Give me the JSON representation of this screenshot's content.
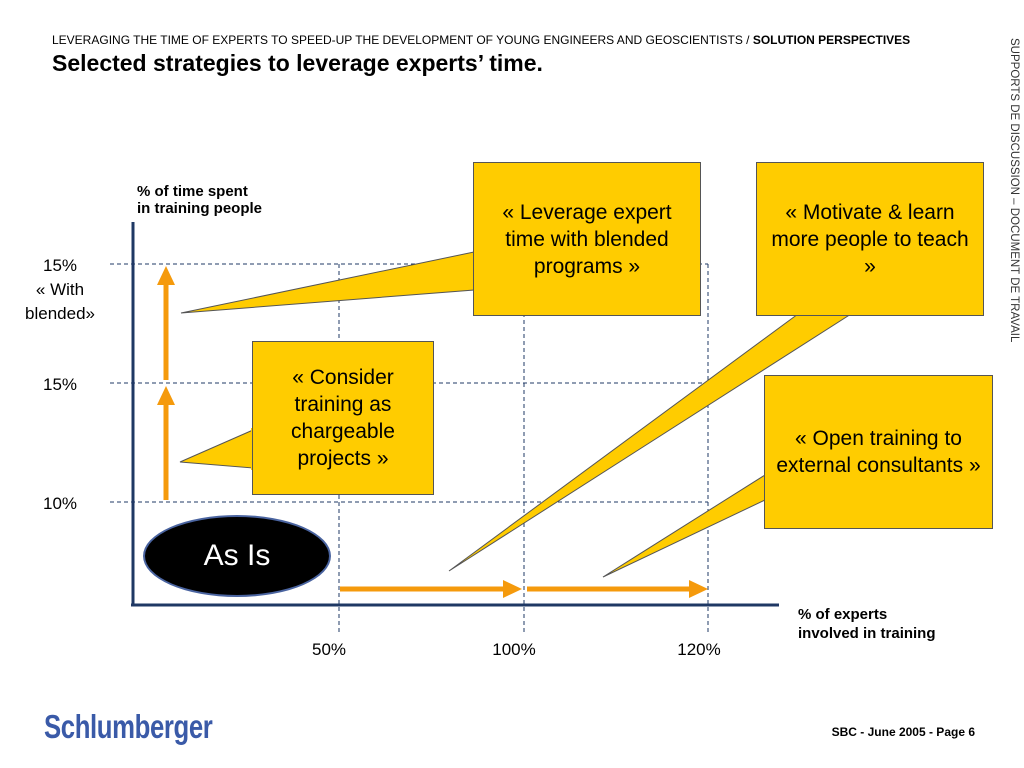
{
  "header": {
    "kicker": "LEVERAGING THE TIME OF EXPERTS TO SPEED-UP THE DEVELOPMENT OF YOUNG ENGINEERS AND GEOSCIENTISTS / ",
    "kicker_bold": "SOLUTION PERSPECTIVES",
    "title": "Selected strategies to leverage experts’ time."
  },
  "side_label": "SUPPORTS DE DISCUSSION – DOCUMENT DE TRAVAIL",
  "chart": {
    "y_axis_label_line1": "% of time spent",
    "y_axis_label_line2": "in training people",
    "x_axis_label_line1": "% of experts",
    "x_axis_label_line2": "involved in training",
    "y_ticks": [
      "15%\n« With\nblended»",
      "15%",
      "10%"
    ],
    "y_tick_top": {
      "line1": "15%",
      "line2": "« With",
      "line3": "blended»"
    },
    "y_tick_mid": "15%",
    "y_tick_low": "10%",
    "x_tick_1": "50%",
    "x_tick_2": "100%",
    "x_tick_3": "120%",
    "baseline_label": "As Is",
    "colors": {
      "axis": "#1f3864",
      "grid": "#1f3864",
      "arrow": "#f59a0c",
      "callout": "#ffcc00"
    }
  },
  "callouts": {
    "leverage": "« Leverage expert time with blended programs »",
    "motivate": "« Motivate & learn more people to teach »",
    "chargeable": "« Consider training as chargeable projects »",
    "open": "« Open training to external consultants »"
  },
  "footer": {
    "logo": "Schlumberger",
    "page": "SBC - June 2005 - Page 6"
  }
}
